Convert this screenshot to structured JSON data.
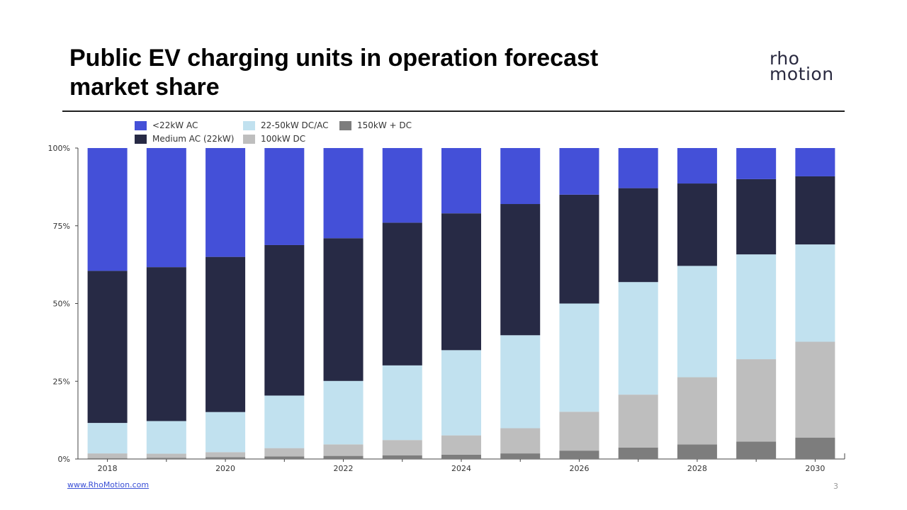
{
  "title_lines": [
    "Public EV charging units in operation forecast",
    "market share"
  ],
  "logo": {
    "line1": "rho",
    "line2": "motion"
  },
  "footer": {
    "link": "www.RhoMotion.com",
    "page": "3"
  },
  "colors": {
    "lt22": "#4450d8",
    "medium_ac": "#272a45",
    "dc22_50": "#c1e1ef",
    "dc100": "#bebebe",
    "dc150": "#7d7d7d"
  },
  "chart_data": {
    "type": "bar",
    "stacked": true,
    "normalized": true,
    "categories": [
      "2018",
      "2019",
      "2020",
      "2021",
      "2022",
      "2023",
      "2024",
      "2025",
      "2026",
      "2027",
      "2028",
      "2029",
      "2030"
    ],
    "x_tick_labels": [
      "2018",
      "",
      "2020",
      "",
      "2022",
      "",
      "2024",
      "",
      "2026",
      "",
      "2028",
      "",
      "2030"
    ],
    "y_ticks": [
      "0%",
      "25%",
      "50%",
      "75%",
      "100%"
    ],
    "ylim": [
      0,
      100
    ],
    "legend_position": "top-left",
    "series": [
      {
        "name": "150kW + DC",
        "color_key": "dc150",
        "values": [
          0.3,
          0.4,
          0.6,
          0.8,
          1.0,
          1.2,
          1.4,
          1.8,
          2.7,
          3.7,
          4.7,
          5.6,
          6.9
        ]
      },
      {
        "name": "100kW DC",
        "color_key": "dc100",
        "values": [
          1.5,
          1.3,
          1.6,
          2.7,
          3.7,
          4.9,
          6.2,
          8.1,
          12.5,
          17.0,
          21.6,
          26.5,
          30.8
        ]
      },
      {
        "name": "22-50kW DC/AC",
        "color_key": "dc22_50",
        "values": [
          9.8,
          10.5,
          12.9,
          16.9,
          20.4,
          24.0,
          27.4,
          29.9,
          34.8,
          36.2,
          35.8,
          33.7,
          31.3
        ]
      },
      {
        "name": "Medium AC (22kW)",
        "color_key": "medium_ac",
        "values": [
          48.9,
          49.5,
          49.9,
          48.4,
          45.9,
          45.9,
          44.0,
          42.2,
          35.0,
          30.2,
          26.5,
          24.2,
          21.9
        ]
      },
      {
        "name": "<22kW AC",
        "color_key": "lt22",
        "values": [
          39.5,
          38.3,
          35.0,
          31.2,
          29.0,
          24.0,
          21.0,
          18.0,
          15.0,
          12.9,
          11.4,
          10.0,
          9.1
        ]
      }
    ],
    "legend": [
      {
        "name": "<22kW AC",
        "color_key": "lt22"
      },
      {
        "name": "22-50kW DC/AC",
        "color_key": "dc22_50"
      },
      {
        "name": "150kW + DC",
        "color_key": "dc150"
      },
      {
        "name": "Medium AC (22kW)",
        "color_key": "medium_ac"
      },
      {
        "name": "100kW DC",
        "color_key": "dc100"
      }
    ]
  }
}
